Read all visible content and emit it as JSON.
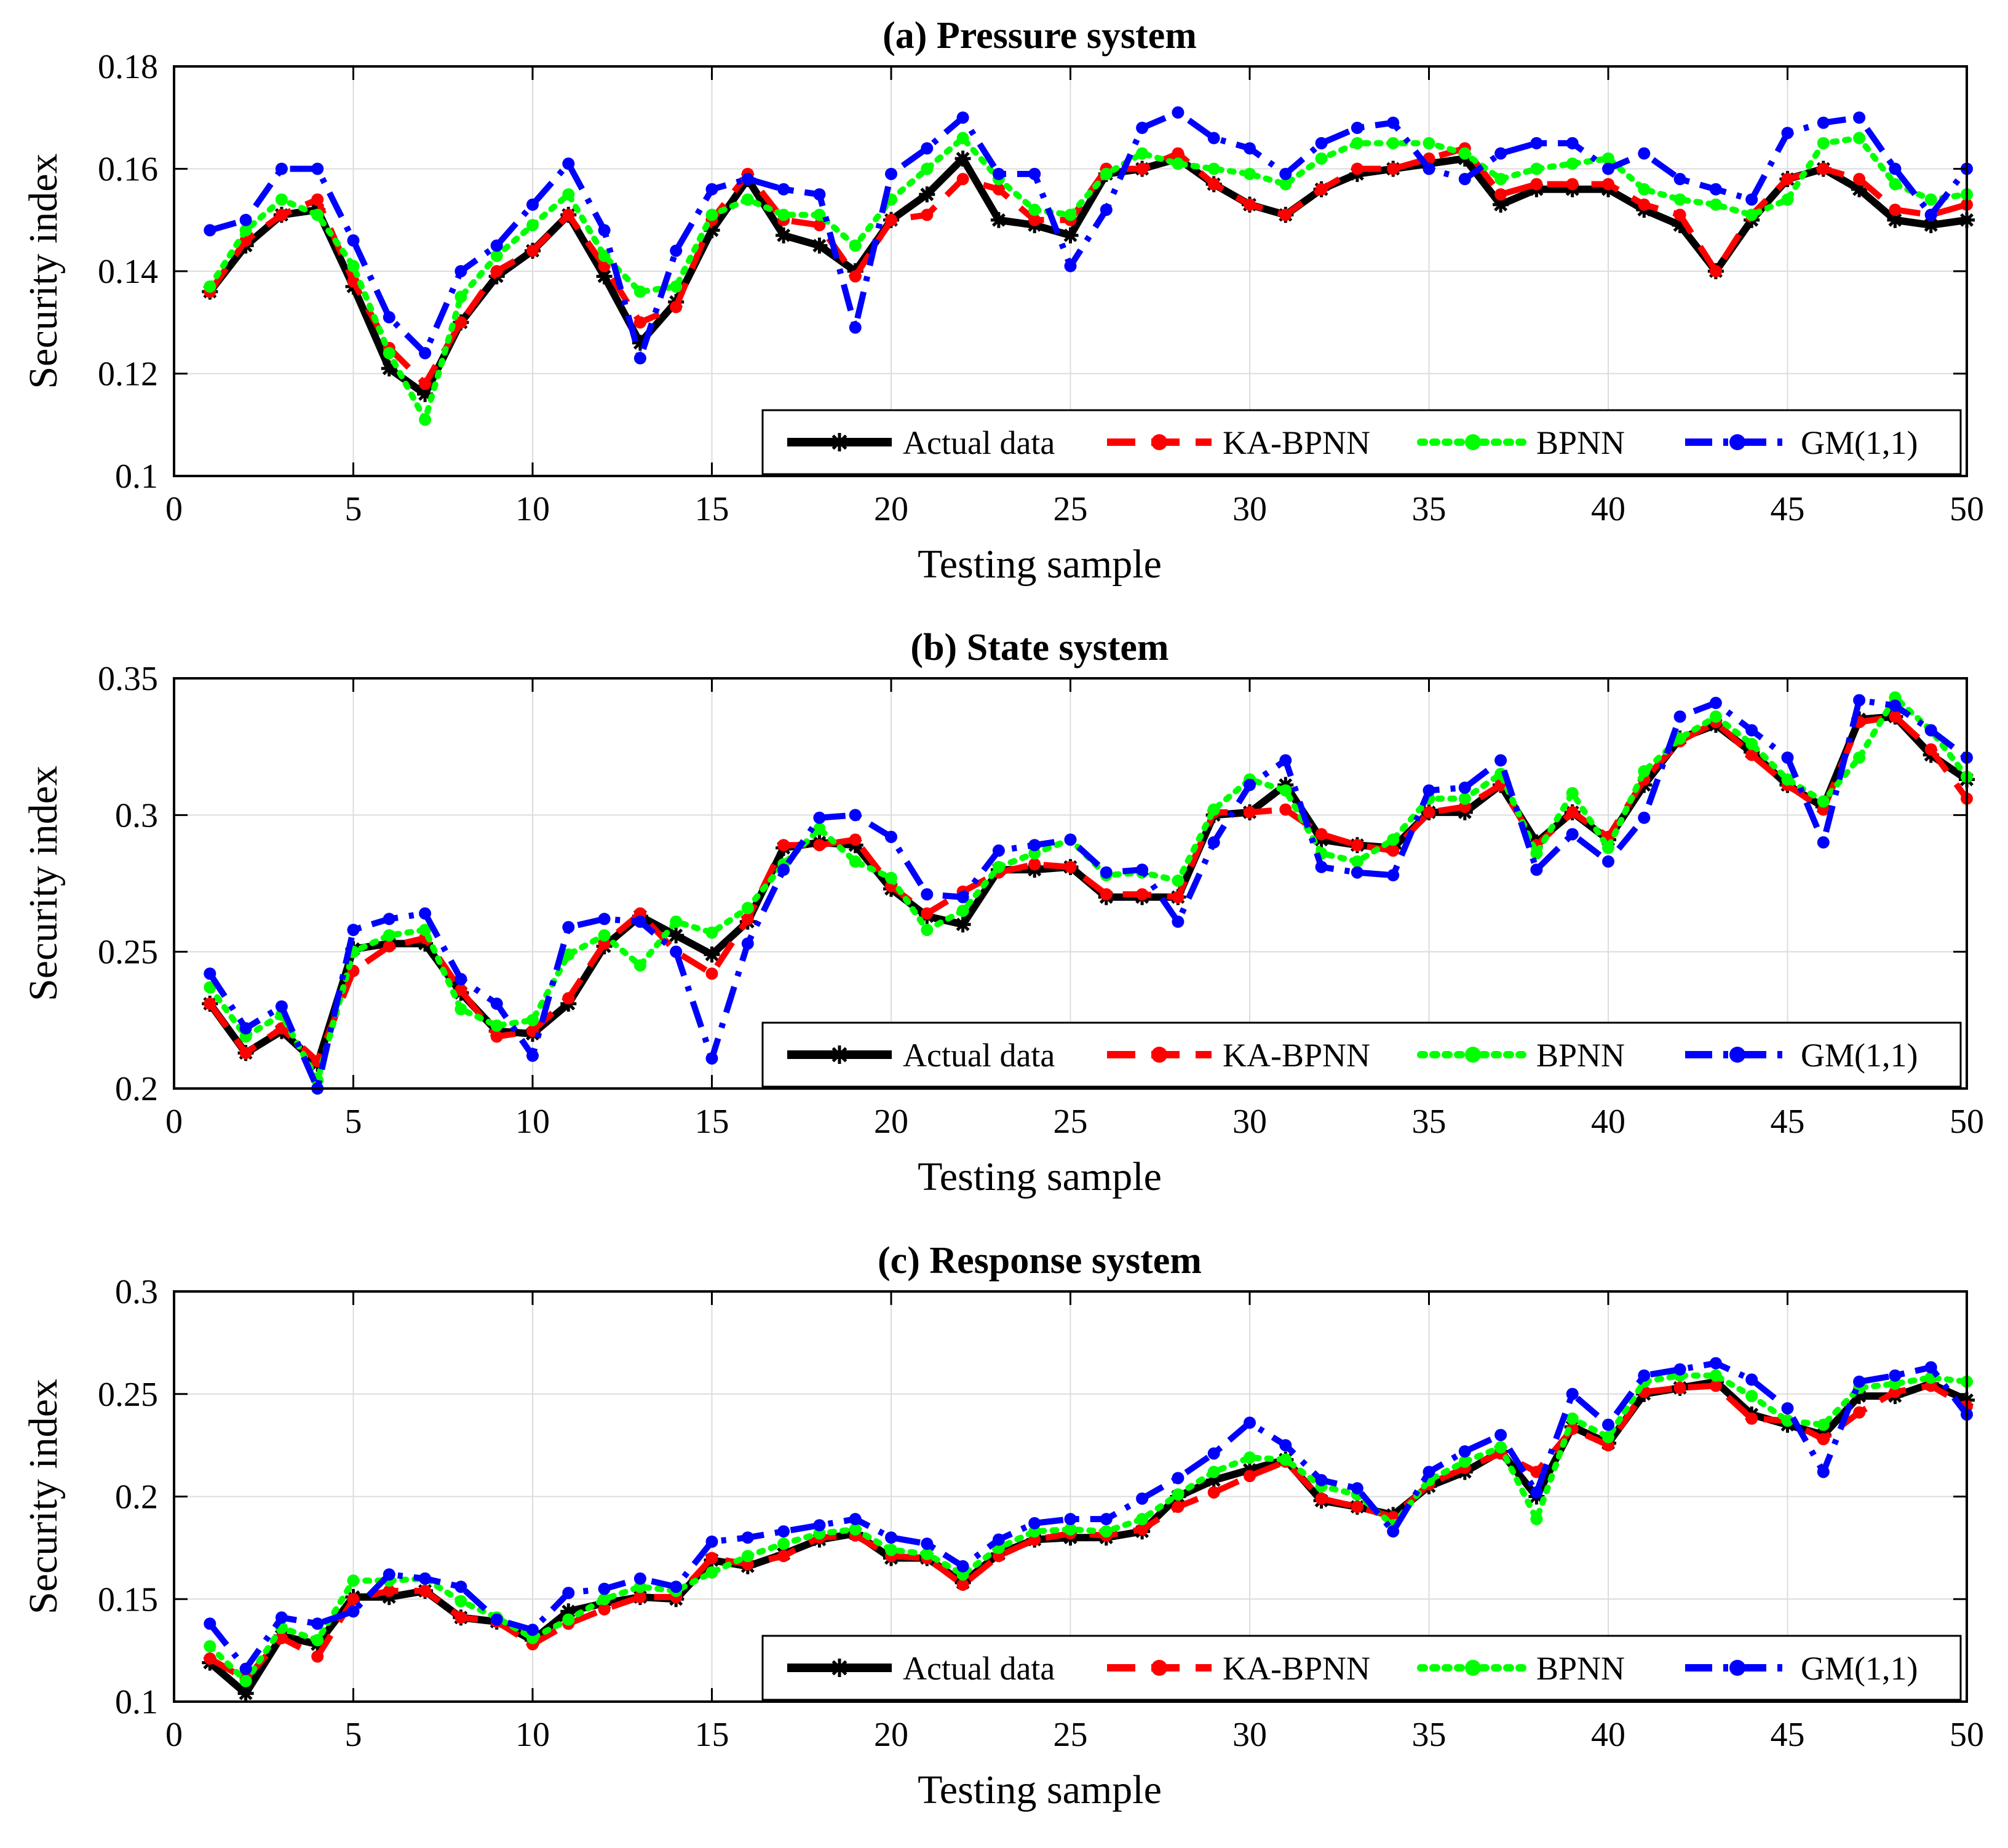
{
  "chart_data": [
    {
      "type": "line",
      "title": "(a) Pressure system",
      "xlabel": "Testing sample",
      "ylabel": "Security index",
      "xlim": [
        0,
        50
      ],
      "ylim": [
        0.1,
        0.18
      ],
      "xticks": [
        0,
        5,
        10,
        15,
        20,
        25,
        30,
        35,
        40,
        45,
        50
      ],
      "yticks": [
        0.1,
        0.12,
        0.14,
        0.16,
        0.18
      ],
      "ytick_labels": [
        "0.1",
        "0.12",
        "0.14",
        "0.16",
        "0.18"
      ],
      "grid": true,
      "legend_position": "bottom-right",
      "x": [
        1,
        2,
        3,
        4,
        5,
        6,
        7,
        8,
        9,
        10,
        11,
        12,
        13,
        14,
        15,
        16,
        17,
        18,
        19,
        20,
        21,
        22,
        23,
        24,
        25,
        26,
        27,
        28,
        29,
        30,
        31,
        32,
        33,
        34,
        35,
        36,
        37,
        38,
        39,
        40,
        41,
        42,
        43,
        44,
        45,
        46,
        47,
        48,
        49,
        50
      ],
      "series": [
        {
          "name": "Actual data",
          "color": "#000000",
          "style": "solid",
          "marker": "star",
          "values": [
            0.136,
            0.145,
            0.151,
            0.152,
            0.137,
            0.121,
            0.116,
            0.13,
            0.139,
            0.144,
            0.151,
            0.139,
            0.126,
            0.134,
            0.148,
            0.158,
            0.147,
            0.145,
            0.14,
            0.15,
            0.155,
            0.162,
            0.15,
            0.149,
            0.147,
            0.159,
            0.16,
            0.162,
            0.157,
            0.153,
            0.151,
            0.156,
            0.159,
            0.16,
            0.161,
            0.162,
            0.153,
            0.156,
            0.156,
            0.156,
            0.152,
            0.149,
            0.14,
            0.15,
            0.158,
            0.16,
            0.156,
            0.15,
            0.149,
            0.15
          ]
        },
        {
          "name": "KA-BPNN",
          "color": "#ff0000",
          "style": "dashed",
          "marker": "circle",
          "values": [
            0.136,
            0.146,
            0.151,
            0.154,
            0.138,
            0.125,
            0.118,
            0.13,
            0.14,
            0.144,
            0.151,
            0.141,
            0.13,
            0.133,
            0.15,
            0.159,
            0.15,
            0.149,
            0.139,
            0.15,
            0.151,
            0.158,
            0.156,
            0.15,
            0.15,
            0.16,
            0.16,
            0.163,
            0.157,
            0.153,
            0.151,
            0.156,
            0.16,
            0.16,
            0.162,
            0.164,
            0.155,
            0.157,
            0.157,
            0.157,
            0.153,
            0.151,
            0.14,
            0.151,
            0.158,
            0.16,
            0.158,
            0.152,
            0.151,
            0.153
          ]
        },
        {
          "name": "BPNN",
          "color": "#00ff00",
          "style": "dotted",
          "marker": "circle",
          "values": [
            0.137,
            0.148,
            0.154,
            0.151,
            0.141,
            0.124,
            0.111,
            0.135,
            0.143,
            0.149,
            0.155,
            0.143,
            0.136,
            0.137,
            0.151,
            0.154,
            0.151,
            0.151,
            0.145,
            0.154,
            0.16,
            0.166,
            0.158,
            0.152,
            0.151,
            0.159,
            0.163,
            0.161,
            0.16,
            0.159,
            0.157,
            0.162,
            0.165,
            0.165,
            0.165,
            0.163,
            0.158,
            0.16,
            0.161,
            0.162,
            0.156,
            0.154,
            0.153,
            0.151,
            0.154,
            0.165,
            0.166,
            0.157,
            0.154,
            0.155
          ]
        },
        {
          "name": "GM(1,1)",
          "color": "#0000ff",
          "style": "dashdot",
          "marker": "circle",
          "values": [
            0.148,
            0.15,
            0.16,
            0.16,
            0.146,
            0.131,
            0.124,
            0.14,
            0.145,
            0.153,
            0.161,
            0.148,
            0.123,
            0.144,
            0.156,
            0.158,
            0.156,
            0.155,
            0.129,
            0.159,
            0.164,
            0.17,
            0.159,
            0.159,
            0.141,
            0.152,
            0.168,
            0.171,
            0.166,
            0.164,
            0.159,
            0.165,
            0.168,
            0.169,
            0.16,
            0.158,
            0.163,
            0.165,
            0.165,
            0.16,
            0.163,
            0.158,
            0.156,
            0.154,
            0.167,
            0.169,
            0.17,
            0.16,
            0.151,
            0.16
          ]
        }
      ]
    },
    {
      "type": "line",
      "title": "(b) State system",
      "xlabel": "Testing sample",
      "ylabel": "Security index",
      "xlim": [
        0,
        50
      ],
      "ylim": [
        0.2,
        0.35
      ],
      "xticks": [
        0,
        5,
        10,
        15,
        20,
        25,
        30,
        35,
        40,
        45,
        50
      ],
      "yticks": [
        0.2,
        0.25,
        0.3,
        0.35
      ],
      "ytick_labels": [
        "0.2",
        "0.25",
        "0.3",
        "0.35"
      ],
      "grid": true,
      "legend_position": "bottom-right",
      "x": [
        1,
        2,
        3,
        4,
        5,
        6,
        7,
        8,
        9,
        10,
        11,
        12,
        13,
        14,
        15,
        16,
        17,
        18,
        19,
        20,
        21,
        22,
        23,
        24,
        25,
        26,
        27,
        28,
        29,
        30,
        31,
        32,
        33,
        34,
        35,
        36,
        37,
        38,
        39,
        40,
        41,
        42,
        43,
        44,
        45,
        46,
        47,
        48,
        49,
        50
      ],
      "series": [
        {
          "name": "Actual data",
          "color": "#000000",
          "style": "solid",
          "marker": "star",
          "values": [
            0.231,
            0.213,
            0.221,
            0.209,
            0.251,
            0.253,
            0.253,
            0.235,
            0.221,
            0.22,
            0.231,
            0.252,
            0.263,
            0.256,
            0.249,
            0.261,
            0.288,
            0.29,
            0.289,
            0.273,
            0.263,
            0.26,
            0.28,
            0.28,
            0.281,
            0.27,
            0.27,
            0.27,
            0.3,
            0.301,
            0.311,
            0.291,
            0.289,
            0.288,
            0.301,
            0.301,
            0.311,
            0.29,
            0.301,
            0.291,
            0.311,
            0.328,
            0.333,
            0.323,
            0.311,
            0.303,
            0.335,
            0.336,
            0.322,
            0.313
          ]
        },
        {
          "name": "KA-BPNN",
          "color": "#ff0000",
          "style": "dashed",
          "marker": "circle",
          "values": [
            0.231,
            0.213,
            0.222,
            0.21,
            0.243,
            0.252,
            0.255,
            0.236,
            0.219,
            0.221,
            0.233,
            0.253,
            0.264,
            0.25,
            0.242,
            0.262,
            0.289,
            0.289,
            0.291,
            0.274,
            0.264,
            0.272,
            0.279,
            0.282,
            0.281,
            0.271,
            0.271,
            0.27,
            0.301,
            0.301,
            0.302,
            0.293,
            0.289,
            0.287,
            0.301,
            0.303,
            0.311,
            0.289,
            0.301,
            0.292,
            0.313,
            0.327,
            0.334,
            0.322,
            0.311,
            0.302,
            0.334,
            0.336,
            0.324,
            0.306
          ]
        },
        {
          "name": "BPNN",
          "color": "#00ff00",
          "style": "dotted",
          "marker": "circle",
          "values": [
            0.237,
            0.219,
            0.227,
            0.203,
            0.25,
            0.256,
            0.258,
            0.229,
            0.223,
            0.225,
            0.249,
            0.256,
            0.245,
            0.261,
            0.257,
            0.266,
            0.282,
            0.295,
            0.283,
            0.277,
            0.258,
            0.265,
            0.281,
            0.286,
            0.291,
            0.278,
            0.279,
            0.276,
            0.302,
            0.313,
            0.309,
            0.286,
            0.283,
            0.291,
            0.306,
            0.306,
            0.315,
            0.286,
            0.308,
            0.288,
            0.316,
            0.328,
            0.336,
            0.326,
            0.313,
            0.305,
            0.321,
            0.343,
            0.331,
            0.314
          ]
        },
        {
          "name": "GM(1,1)",
          "color": "#0000ff",
          "style": "dashdot",
          "marker": "circle",
          "values": [
            0.242,
            0.222,
            0.23,
            0.2,
            0.258,
            0.262,
            0.264,
            0.24,
            0.231,
            0.212,
            0.259,
            0.262,
            0.261,
            0.25,
            0.211,
            0.253,
            0.28,
            0.299,
            0.3,
            0.292,
            0.271,
            0.27,
            0.287,
            0.289,
            0.291,
            0.279,
            0.28,
            0.261,
            0.29,
            0.311,
            0.32,
            0.281,
            0.279,
            0.278,
            0.309,
            0.31,
            0.32,
            0.28,
            0.293,
            0.283,
            0.299,
            0.336,
            0.341,
            0.331,
            0.321,
            0.29,
            0.342,
            0.34,
            0.331,
            0.321
          ]
        }
      ]
    },
    {
      "type": "line",
      "title": "(c) Response system",
      "xlabel": "Testing sample",
      "ylabel": "Security index",
      "xlim": [
        0,
        50
      ],
      "ylim": [
        0.1,
        0.3
      ],
      "xticks": [
        0,
        5,
        10,
        15,
        20,
        25,
        30,
        35,
        40,
        45,
        50
      ],
      "yticks": [
        0.1,
        0.15,
        0.2,
        0.25,
        0.3
      ],
      "ytick_labels": [
        "0.1",
        "0.15",
        "0.2",
        "0.25",
        "0.3"
      ],
      "grid": true,
      "legend_position": "bottom-right",
      "x": [
        1,
        2,
        3,
        4,
        5,
        6,
        7,
        8,
        9,
        10,
        11,
        12,
        13,
        14,
        15,
        16,
        17,
        18,
        19,
        20,
        21,
        22,
        23,
        24,
        25,
        26,
        27,
        28,
        29,
        30,
        31,
        32,
        33,
        34,
        35,
        36,
        37,
        38,
        39,
        40,
        41,
        42,
        43,
        44,
        45,
        46,
        47,
        48,
        49,
        50
      ],
      "series": [
        {
          "name": "Actual data",
          "color": "#000000",
          "style": "solid",
          "marker": "star",
          "values": [
            0.119,
            0.104,
            0.132,
            0.128,
            0.151,
            0.151,
            0.154,
            0.141,
            0.139,
            0.13,
            0.144,
            0.148,
            0.151,
            0.15,
            0.169,
            0.166,
            0.172,
            0.179,
            0.182,
            0.17,
            0.17,
            0.158,
            0.172,
            0.179,
            0.18,
            0.18,
            0.183,
            0.2,
            0.208,
            0.213,
            0.218,
            0.198,
            0.195,
            0.191,
            0.205,
            0.212,
            0.222,
            0.2,
            0.234,
            0.226,
            0.25,
            0.253,
            0.256,
            0.24,
            0.235,
            0.23,
            0.249,
            0.249,
            0.255,
            0.247
          ]
        },
        {
          "name": "KA-BPNN",
          "color": "#ff0000",
          "style": "dashed",
          "marker": "circle",
          "values": [
            0.121,
            0.111,
            0.131,
            0.122,
            0.15,
            0.154,
            0.154,
            0.141,
            0.139,
            0.128,
            0.138,
            0.145,
            0.151,
            0.151,
            0.17,
            0.167,
            0.171,
            0.18,
            0.181,
            0.171,
            0.17,
            0.157,
            0.171,
            0.179,
            0.182,
            0.181,
            0.184,
            0.195,
            0.202,
            0.21,
            0.217,
            0.199,
            0.195,
            0.19,
            0.206,
            0.214,
            0.221,
            0.212,
            0.233,
            0.225,
            0.251,
            0.253,
            0.254,
            0.238,
            0.237,
            0.228,
            0.241,
            0.251,
            0.254,
            0.244
          ]
        },
        {
          "name": "BPNN",
          "color": "#00ff00",
          "style": "dotted",
          "marker": "circle",
          "values": [
            0.127,
            0.11,
            0.136,
            0.13,
            0.159,
            0.159,
            0.16,
            0.149,
            0.141,
            0.131,
            0.14,
            0.15,
            0.156,
            0.154,
            0.163,
            0.171,
            0.177,
            0.182,
            0.184,
            0.174,
            0.172,
            0.162,
            0.175,
            0.183,
            0.184,
            0.183,
            0.189,
            0.201,
            0.212,
            0.219,
            0.218,
            0.205,
            0.201,
            0.186,
            0.208,
            0.217,
            0.224,
            0.189,
            0.238,
            0.229,
            0.256,
            0.259,
            0.259,
            0.249,
            0.237,
            0.235,
            0.253,
            0.255,
            0.258,
            0.256
          ]
        },
        {
          "name": "GM(1,1)",
          "color": "#0000ff",
          "style": "dashdot",
          "marker": "circle",
          "values": [
            0.138,
            0.116,
            0.141,
            0.138,
            0.144,
            0.162,
            0.16,
            0.156,
            0.14,
            0.135,
            0.153,
            0.155,
            0.16,
            0.156,
            0.178,
            0.18,
            0.183,
            0.186,
            0.189,
            0.18,
            0.177,
            0.166,
            0.179,
            0.187,
            0.189,
            0.189,
            0.199,
            0.209,
            0.221,
            0.236,
            0.225,
            0.208,
            0.204,
            0.183,
            0.212,
            0.222,
            0.23,
            0.202,
            0.25,
            0.235,
            0.259,
            0.262,
            0.265,
            0.257,
            0.243,
            0.212,
            0.256,
            0.259,
            0.263,
            0.24
          ]
        }
      ]
    }
  ]
}
